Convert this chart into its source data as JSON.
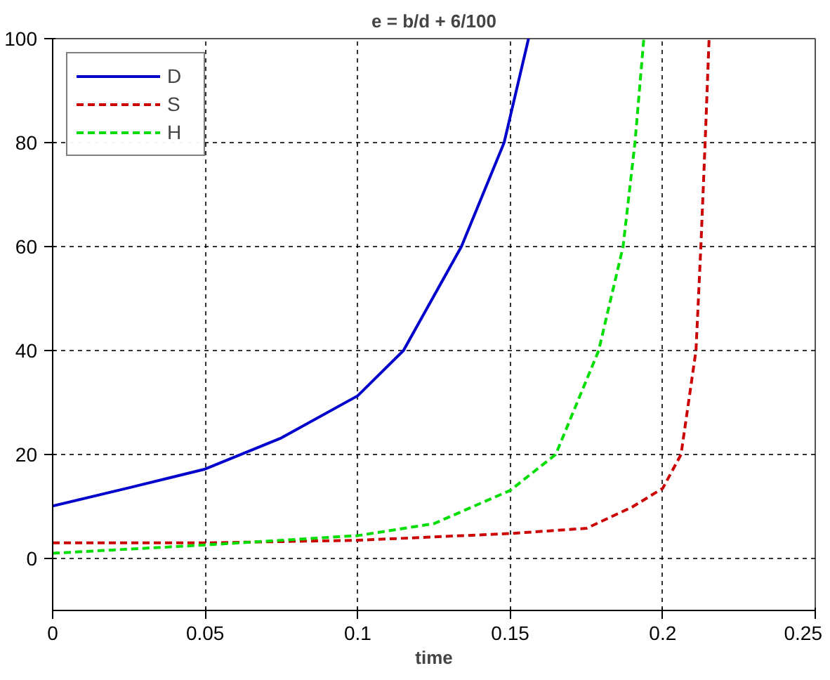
{
  "chart_data": {
    "type": "line",
    "title": "e = b/d + 6/100",
    "xlabel": "time",
    "xlim": [
      0,
      0.25
    ],
    "ylim": [
      -10,
      100
    ],
    "xticks": [
      0,
      0.05,
      0.1,
      0.15,
      0.2,
      0.25
    ],
    "yticks": [
      0,
      20,
      40,
      60,
      80,
      100
    ],
    "grid": true,
    "legend": "top left",
    "series": [
      {
        "name": "D",
        "color": "#0000cc",
        "line_style": "solid",
        "x": [
          0,
          0.025,
          0.05,
          0.075,
          0.1,
          0.115,
          0.134,
          0.148,
          0.156
        ],
        "values": [
          10.1,
          13.6,
          17.2,
          23.2,
          31.3,
          40,
          60,
          80,
          100
        ]
      },
      {
        "name": "S",
        "color": "#cc0000",
        "line_style": "dashed",
        "x": [
          0,
          0.05,
          0.1,
          0.15,
          0.175,
          0.19,
          0.2,
          0.206,
          0.2109,
          0.2125,
          0.2139,
          0.2152
        ],
        "values": [
          3.0,
          3.0,
          3.5,
          4.8,
          5.8,
          9.9,
          13.5,
          20,
          40,
          60,
          80,
          100
        ]
      },
      {
        "name": "H",
        "color": "#00dd00",
        "line_style": "dashed",
        "x": [
          0,
          0.05,
          0.1,
          0.125,
          0.15,
          0.1649,
          0.179,
          0.187,
          0.1909,
          0.1938
        ],
        "values": [
          1.0,
          2.6,
          4.4,
          6.7,
          13.1,
          20,
          40,
          60,
          80,
          100
        ]
      }
    ]
  }
}
